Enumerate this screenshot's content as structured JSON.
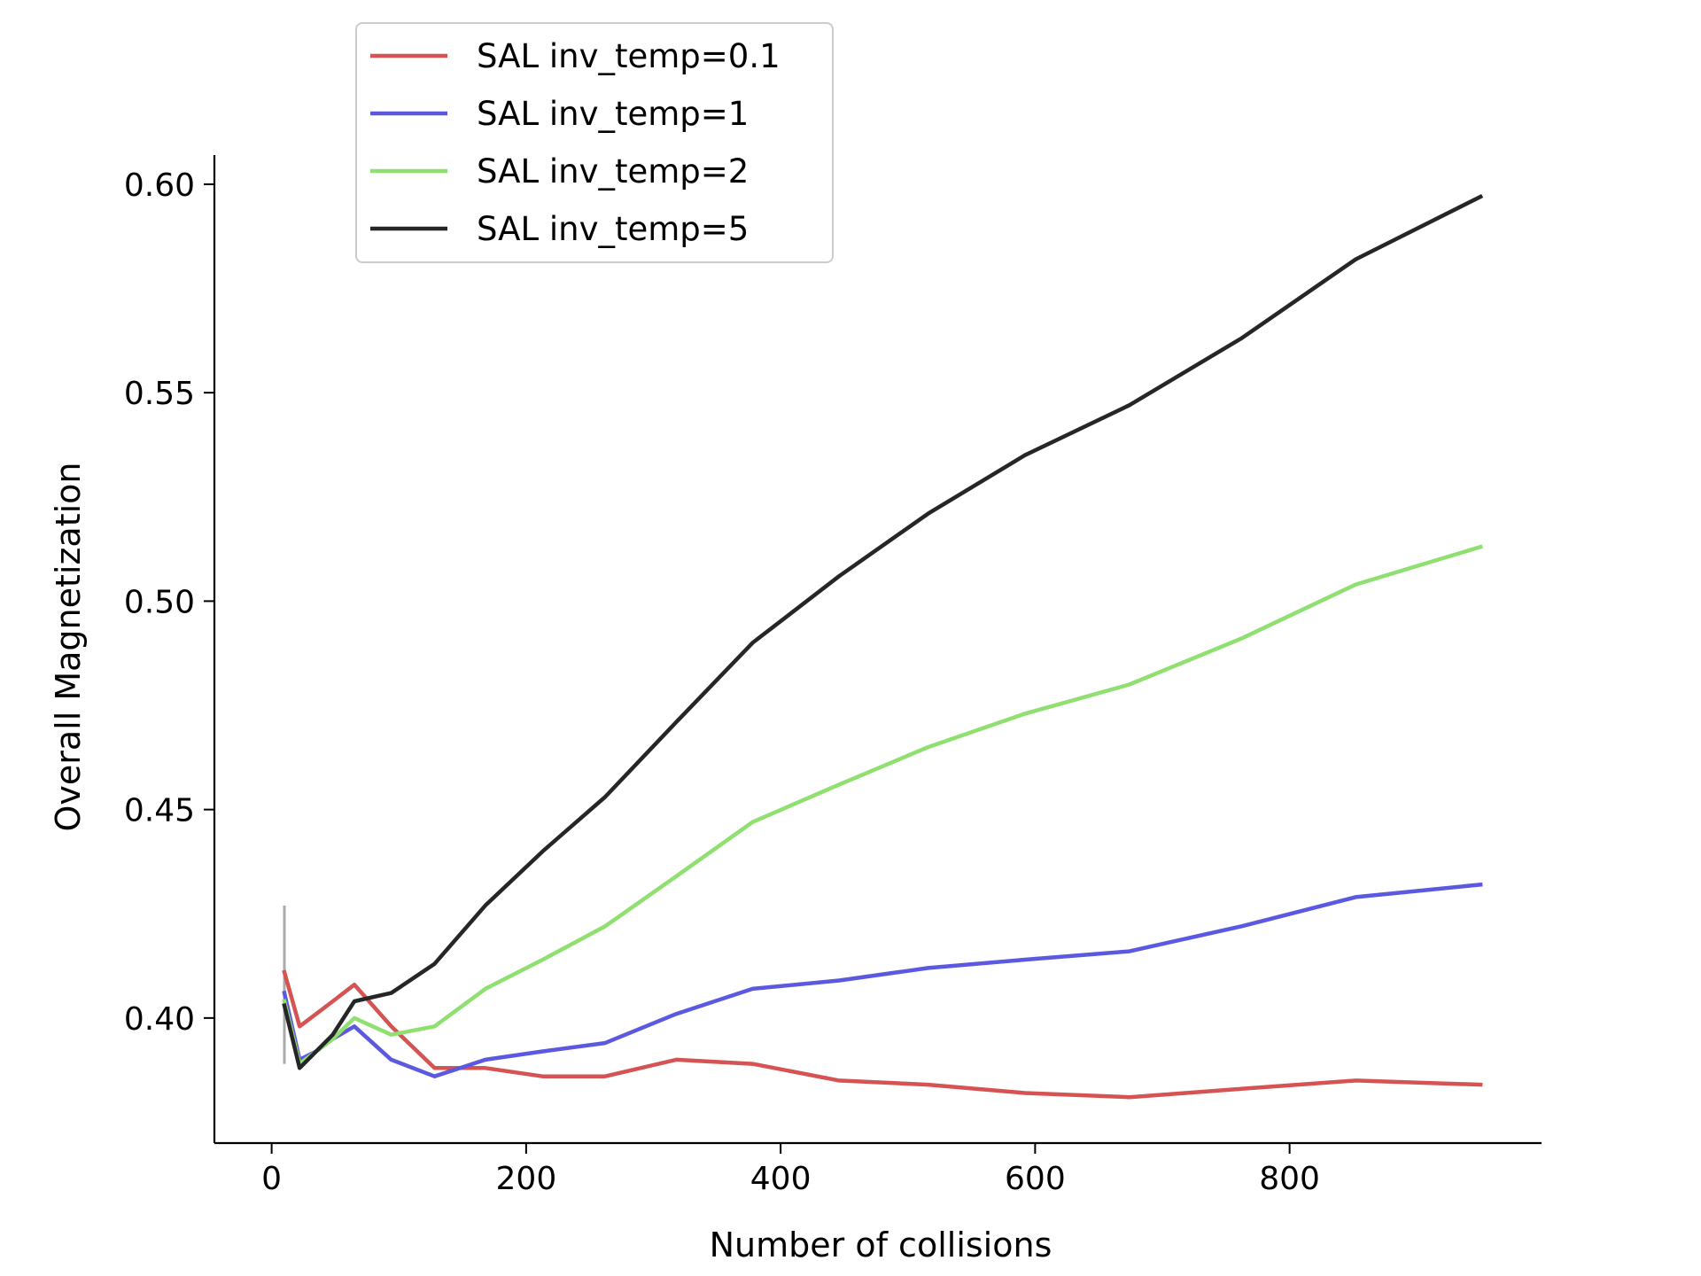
{
  "chart_data": {
    "type": "line",
    "title": "",
    "xlabel": "Number of collisions",
    "ylabel": "Overall Magnetization",
    "xlim": [
      -45,
      998
    ],
    "ylim": [
      0.37,
      0.607
    ],
    "xticks": [
      0,
      200,
      400,
      600,
      800
    ],
    "xtick_labels": [
      "0",
      "200",
      "400",
      "600",
      "800"
    ],
    "yticks": [
      0.4,
      0.45,
      0.5,
      0.55,
      0.6
    ],
    "ytick_labels": [
      "0.40",
      "0.45",
      "0.50",
      "0.55",
      "0.60"
    ],
    "grid": false,
    "legend_position": "top-left",
    "x": [
      10,
      22,
      35,
      48,
      65,
      94,
      128,
      168,
      213,
      262,
      318,
      378,
      446,
      516,
      592,
      674,
      762,
      852,
      950
    ],
    "series": [
      {
        "name": "SAL inv_temp=0.1",
        "color": "#d65353",
        "values": [
          0.411,
          0.398,
          0.401,
          0.404,
          0.408,
          0.398,
          0.388,
          0.388,
          0.386,
          0.386,
          0.39,
          0.389,
          0.385,
          0.384,
          0.382,
          0.381,
          0.383,
          0.385,
          0.384
        ]
      },
      {
        "name": "SAL inv_temp=1",
        "color": "#5b59e0",
        "values": [
          0.406,
          0.39,
          0.392,
          0.395,
          0.398,
          0.39,
          0.386,
          0.39,
          0.392,
          0.394,
          0.401,
          0.407,
          0.409,
          0.412,
          0.414,
          0.416,
          0.422,
          0.429,
          0.432
        ]
      },
      {
        "name": "SAL inv_temp=2",
        "color": "#8fe070",
        "values": [
          0.404,
          0.389,
          0.392,
          0.395,
          0.4,
          0.396,
          0.398,
          0.407,
          0.414,
          0.422,
          0.434,
          0.447,
          0.456,
          0.465,
          0.473,
          0.48,
          0.491,
          0.504,
          0.513
        ]
      },
      {
        "name": "SAL inv_temp=5",
        "color": "#262626",
        "values": [
          0.403,
          0.388,
          0.392,
          0.396,
          0.404,
          0.406,
          0.413,
          0.427,
          0.44,
          0.453,
          0.471,
          0.49,
          0.506,
          0.521,
          0.535,
          0.547,
          0.563,
          0.582,
          0.597
        ]
      }
    ],
    "error_bar": {
      "x": 10,
      "low": 0.389,
      "high": 0.427,
      "color": "#aaaaaa"
    }
  }
}
